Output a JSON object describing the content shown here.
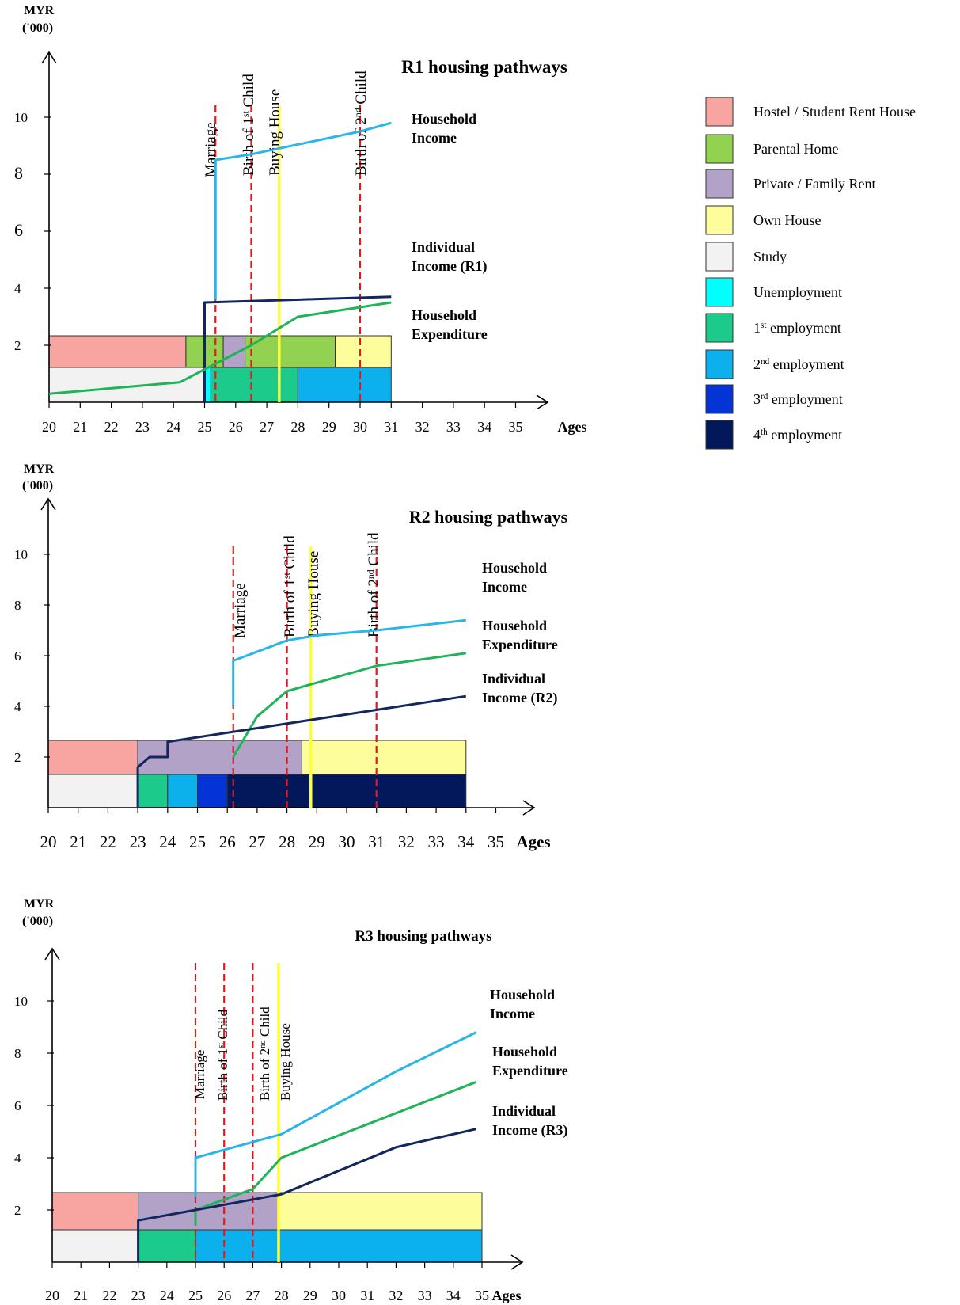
{
  "legend": {
    "items": [
      {
        "label": "Hostel / Student Rent House",
        "color": "#f8a4a0"
      },
      {
        "label": "Parental Home",
        "color": "#93d150"
      },
      {
        "label": "Private / Family Rent",
        "color": "#b3a2c7"
      },
      {
        "label": "Own House",
        "color": "#fdfd9b"
      },
      {
        "label": "Study",
        "color": "#f2f2f2"
      },
      {
        "label": "Unemployment",
        "color": "#00ffff"
      },
      {
        "label": "1st employment",
        "color": "#1ccb8b"
      },
      {
        "label": "2nd employment",
        "color": "#0cb0ec"
      },
      {
        "label": "3rd employment",
        "color": "#0433d6"
      },
      {
        "label": "4th employment",
        "color": "#03175b"
      }
    ]
  },
  "colors": {
    "household_income": "#29b5e8",
    "household_expenditure": "#1fb35a",
    "individual_income": "#14265e",
    "event_line": "#e31a1c",
    "buying_line": "#ffff33"
  },
  "chart_data": [
    {
      "type": "line",
      "title": "R1 housing pathways",
      "ylabel": "MYR\n('000)",
      "xlabel": "Ages",
      "x_ticks": [
        "20",
        "21",
        "22",
        "23",
        "24",
        "25",
        "26",
        "27",
        "28",
        "29",
        "30",
        "31",
        "32",
        "33",
        "34",
        "35"
      ],
      "y_ticks": [
        "2",
        "4",
        "6",
        "8",
        "10"
      ],
      "xlim": [
        20,
        35
      ],
      "ylim": [
        0,
        10
      ],
      "series": [
        {
          "name": "Household Income",
          "points": [
            [
              25.35,
              3.6
            ],
            [
              25.35,
              8.5
            ],
            [
              26.5,
              8.7
            ],
            [
              30,
              9.5
            ],
            [
              31,
              9.8
            ]
          ]
        },
        {
          "name": "Individual Income (R1)",
          "points": [
            [
              25,
              0
            ],
            [
              25,
              3.5
            ],
            [
              31,
              3.7
            ]
          ]
        },
        {
          "name": "Household Expenditure",
          "points": [
            [
              20,
              0.3
            ],
            [
              24.2,
              0.7
            ],
            [
              26.5,
              2
            ],
            [
              28,
              3
            ],
            [
              31,
              3.5
            ]
          ]
        }
      ],
      "events": [
        {
          "label": "Marriage",
          "x": 25.35
        },
        {
          "label": "Birth of 1st Child",
          "x": 26.5
        },
        {
          "label": "Buying House",
          "x": 27.4
        },
        {
          "label": "Birth of 2nd Child",
          "x": 30
        }
      ],
      "housing": [
        {
          "from": 20,
          "to": 24.4,
          "category": "Hostel / Student Rent House"
        },
        {
          "from": 24.4,
          "to": 25.6,
          "category": "Parental Home"
        },
        {
          "from": 25.6,
          "to": 26.3,
          "category": "Private / Family Rent"
        },
        {
          "from": 26.3,
          "to": 29.2,
          "category": "Parental Home"
        },
        {
          "from": 29.2,
          "to": 31,
          "category": "Own House"
        }
      ],
      "employment": [
        {
          "from": 20,
          "to": 25,
          "category": "Study"
        },
        {
          "from": 25,
          "to": 25.2,
          "category": "Unemployment"
        },
        {
          "from": 25.2,
          "to": 28,
          "category": "1st employment"
        },
        {
          "from": 28,
          "to": 31,
          "category": "2nd employment"
        }
      ]
    },
    {
      "type": "line",
      "title": "R2 housing pathways",
      "ylabel": "MYR\n('000)",
      "xlabel": "Ages",
      "x_ticks": [
        "20",
        "21",
        "22",
        "23",
        "24",
        "25",
        "26",
        "27",
        "28",
        "29",
        "30",
        "31",
        "32",
        "33",
        "34",
        "35"
      ],
      "y_ticks": [
        "2",
        "4",
        "6",
        "8",
        "10"
      ],
      "xlim": [
        20,
        35
      ],
      "ylim": [
        0,
        10
      ],
      "series": [
        {
          "name": "Household Income",
          "points": [
            [
              26.2,
              4
            ],
            [
              26.2,
              5.8
            ],
            [
              28,
              6.6
            ],
            [
              29,
              6.8
            ],
            [
              31,
              7
            ],
            [
              34,
              7.4
            ]
          ]
        },
        {
          "name": "Household Expenditure",
          "points": [
            [
              26.2,
              2
            ],
            [
              27,
              3.6
            ],
            [
              28,
              4.6
            ],
            [
              31,
              5.6
            ],
            [
              34,
              6.1
            ]
          ]
        },
        {
          "name": "Individual Income (R2)",
          "points": [
            [
              23,
              0
            ],
            [
              23,
              1.6
            ],
            [
              23.4,
              2
            ],
            [
              24,
              2
            ],
            [
              24,
              2.6
            ],
            [
              34,
              4.4
            ]
          ]
        }
      ],
      "events": [
        {
          "label": "Marriage",
          "x": 26.2
        },
        {
          "label": "Birth of 1st Child",
          "x": 28
        },
        {
          "label": "Buying  House",
          "x": 28.8
        },
        {
          "label": "Birth of 2nd Child",
          "x": 31
        }
      ],
      "housing": [
        {
          "from": 20,
          "to": 23,
          "category": "Hostel / Student Rent House"
        },
        {
          "from": 23,
          "to": 28.5,
          "category": "Private / Family Rent"
        },
        {
          "from": 28.5,
          "to": 34,
          "category": "Own House"
        }
      ],
      "employment": [
        {
          "from": 20,
          "to": 23,
          "category": "Study"
        },
        {
          "from": 23,
          "to": 24,
          "category": "1st employment"
        },
        {
          "from": 24,
          "to": 25,
          "category": "2nd employment"
        },
        {
          "from": 25,
          "to": 26,
          "category": "3rd employment"
        },
        {
          "from": 26,
          "to": 34,
          "category": "4th employment"
        }
      ]
    },
    {
      "type": "line",
      "title": "R3 housing pathways",
      "ylabel": "MYR\n('000)",
      "xlabel": "Ages",
      "x_ticks": [
        "20",
        "21",
        "22",
        "23",
        "24",
        "25",
        "26",
        "27",
        "28",
        "29",
        "30",
        "31",
        "32",
        "33",
        "34",
        "35"
      ],
      "y_ticks": [
        "2",
        "4",
        "6",
        "8",
        "10"
      ],
      "xlim": [
        20,
        35
      ],
      "ylim": [
        0,
        10
      ],
      "series": [
        {
          "name": "Household Income",
          "points": [
            [
              25,
              2.5
            ],
            [
              25,
              4
            ],
            [
              28,
              4.9
            ],
            [
              32,
              7.3
            ],
            [
              34.8,
              8.8
            ]
          ]
        },
        {
          "name": "Household Expenditure",
          "points": [
            [
              25,
              1.4
            ],
            [
              25,
              2
            ],
            [
              26,
              2.4
            ],
            [
              27,
              2.8
            ],
            [
              28,
              4
            ],
            [
              34.8,
              6.9
            ]
          ]
        },
        {
          "name": "Individual Income (R3)",
          "points": [
            [
              23,
              0
            ],
            [
              23,
              1.6
            ],
            [
              28,
              2.6
            ],
            [
              32,
              4.4
            ],
            [
              34.8,
              5.1
            ]
          ]
        }
      ],
      "events": [
        {
          "label": "Marriage",
          "x": 25
        },
        {
          "label": "Birth of 1st Child",
          "x": 26
        },
        {
          "label": "Birth of 2nd Child",
          "x": 27
        },
        {
          "label": "Buying  House",
          "x": 27.9
        }
      ],
      "housing": [
        {
          "from": 20,
          "to": 23,
          "category": "Hostel / Student Rent House"
        },
        {
          "from": 23,
          "to": 27.9,
          "category": "Private / Family Rent"
        },
        {
          "from": 27.9,
          "to": 35,
          "category": "Own House"
        }
      ],
      "employment": [
        {
          "from": 20,
          "to": 23,
          "category": "Study"
        },
        {
          "from": 23,
          "to": 25,
          "category": "1st employment"
        },
        {
          "from": 25,
          "to": 35,
          "category": "2nd employment"
        }
      ]
    }
  ]
}
